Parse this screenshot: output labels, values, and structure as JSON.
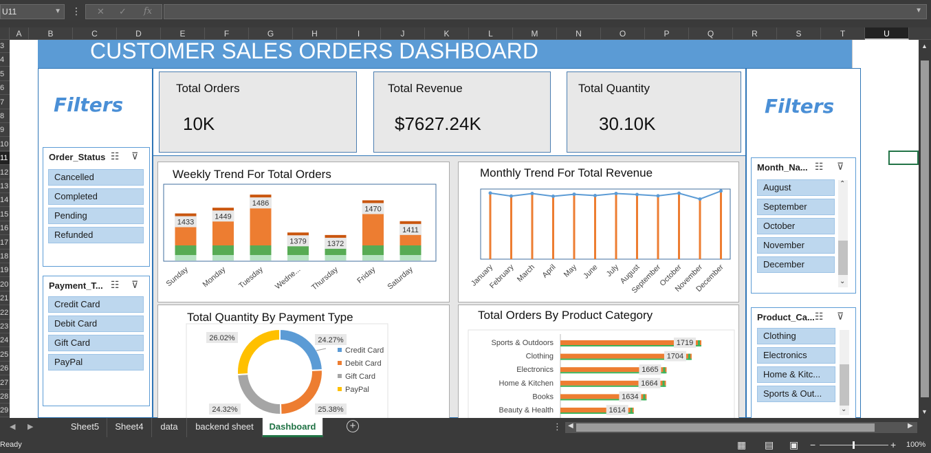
{
  "excel": {
    "name_box": "U11",
    "columns": [
      "A",
      "B",
      "C",
      "D",
      "E",
      "F",
      "G",
      "H",
      "I",
      "J",
      "K",
      "L",
      "M",
      "N",
      "O",
      "P",
      "Q",
      "R",
      "S",
      "T",
      "U"
    ],
    "selected_column": "U",
    "rows": [
      "3",
      "4",
      "5",
      "6",
      "7",
      "8",
      "9",
      "10",
      "11",
      "12",
      "13",
      "14",
      "15",
      "16",
      "17",
      "18",
      "19",
      "20",
      "21",
      "22",
      "23",
      "24",
      "25",
      "26",
      "27",
      "28",
      "29"
    ],
    "selected_row": "11",
    "tabs": [
      "Sheet5",
      "Sheet4",
      "data",
      "backend sheet",
      "Dashboard"
    ],
    "active_tab": "Dashboard",
    "status": "Ready",
    "zoom": "100%"
  },
  "dashboard": {
    "title": "CUSTOMER SALES ORDERS DASHBOARD",
    "filters_label_left": "Filters",
    "filters_label_right": "Filters",
    "kpis": [
      {
        "label": "Total Orders",
        "value": "10K"
      },
      {
        "label": "Total Revenue",
        "value": "$7627.24K"
      },
      {
        "label": "Total Quantity",
        "value": "30.10K"
      }
    ],
    "slicers": {
      "order_status": {
        "title": "Order_Status",
        "items": [
          "Cancelled",
          "Completed",
          "Pending",
          "Refunded"
        ]
      },
      "payment_type": {
        "title": "Payment_T...",
        "items": [
          "Credit Card",
          "Debit Card",
          "Gift Card",
          "PayPal"
        ]
      },
      "month_name": {
        "title": "Month_Na...",
        "items": [
          "August",
          "September",
          "October",
          "November",
          "December"
        ]
      },
      "product_category": {
        "title": "Product_Ca...",
        "items": [
          "Clothing",
          "Electronics",
          "Home & Kitc...",
          "Sports & Out..."
        ]
      }
    }
  },
  "chart_data": [
    {
      "type": "bar",
      "title": "Weekly Trend For Total Orders",
      "categories": [
        "Sunday",
        "Monday",
        "Tuesday",
        "Wedne...",
        "Thursday",
        "Friday",
        "Saturday"
      ],
      "values": [
        1433,
        1449,
        1486,
        1379,
        1372,
        1470,
        1411
      ],
      "ylim": [
        1300,
        1500
      ]
    },
    {
      "type": "line",
      "title": "Monthly Trend For Total Revenue",
      "categories": [
        "January",
        "February",
        "March",
        "April",
        "May",
        "June",
        "July",
        "August",
        "September",
        "October",
        "November",
        "December"
      ],
      "values": [
        660,
        630,
        655,
        628,
        648,
        635,
        655,
        645,
        632,
        658,
        600,
        680
      ],
      "ylim": [
        0,
        700
      ]
    },
    {
      "type": "pie",
      "title": "Total Quantity By Payment Type",
      "labels": [
        "Credit Card",
        "Debit Card",
        "Gift Card",
        "PayPal"
      ],
      "values": [
        24.27,
        25.38,
        24.32,
        26.02
      ],
      "value_labels": [
        "24.27%",
        "25.38%",
        "24.32%",
        "26.02%"
      ],
      "colors": [
        "#5b9bd5",
        "#ed7d31",
        "#a5a5a5",
        "#ffc000"
      ]
    },
    {
      "type": "bar",
      "orientation": "horizontal",
      "title": "Total Orders By Product Category",
      "categories": [
        "Sports & Outdoors",
        "Clothing",
        "Electronics",
        "Home & Kitchen",
        "Books",
        "Beauty & Health"
      ],
      "values": [
        1719,
        1704,
        1665,
        1664,
        1634,
        1614
      ],
      "xlim": [
        1500,
        1750
      ]
    }
  ]
}
